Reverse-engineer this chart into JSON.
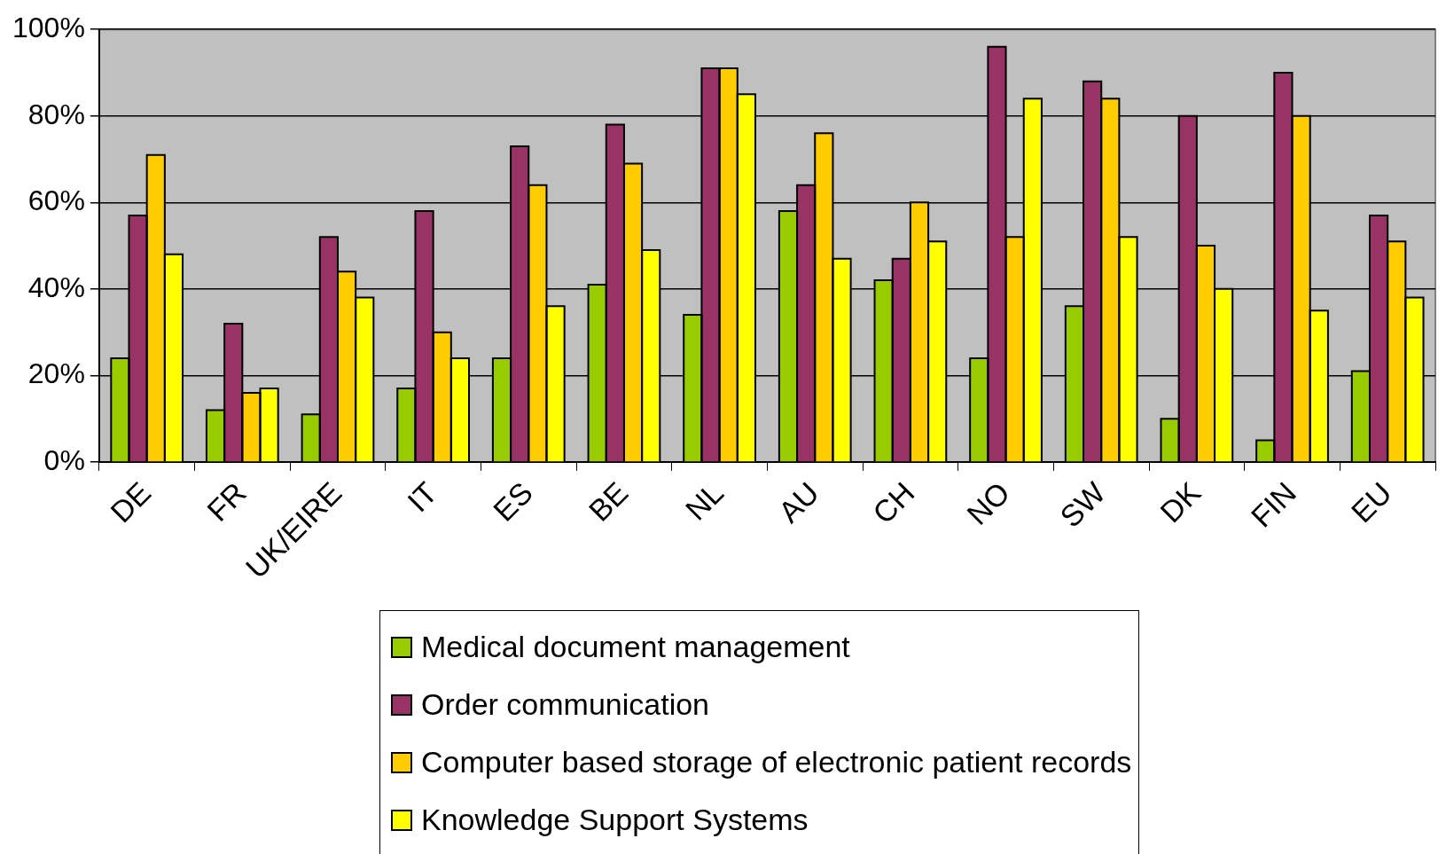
{
  "chart_data": {
    "type": "bar",
    "categories": [
      "DE",
      "FR",
      "UK/EIRE",
      "IT",
      "ES",
      "BE",
      "NL",
      "AU",
      "CH",
      "NO",
      "SW",
      "DK",
      "FIN",
      "EU"
    ],
    "series": [
      {
        "name": "Medical document management",
        "color": "#99cc00",
        "values": [
          24,
          12,
          11,
          17,
          24,
          41,
          34,
          58,
          42,
          24,
          36,
          10,
          5,
          21
        ]
      },
      {
        "name": "Order communication",
        "color": "#993366",
        "values": [
          57,
          32,
          52,
          58,
          73,
          78,
          91,
          64,
          47,
          96,
          88,
          80,
          90,
          57
        ]
      },
      {
        "name": "Computer based storage of electronic patient records",
        "color": "#ffcc00",
        "values": [
          71,
          16,
          44,
          30,
          64,
          69,
          91,
          76,
          60,
          52,
          84,
          50,
          80,
          51
        ]
      },
      {
        "name": "Knowledge Support Systems",
        "color": "#ffff00",
        "values": [
          48,
          17,
          38,
          24,
          36,
          49,
          85,
          47,
          51,
          84,
          52,
          40,
          35,
          38
        ]
      }
    ],
    "ylim": [
      0,
      100
    ],
    "yticks": [
      {
        "value": 0,
        "label": "0%"
      },
      {
        "value": 20,
        "label": "20%"
      },
      {
        "value": 40,
        "label": "40%"
      },
      {
        "value": 60,
        "label": "60%"
      },
      {
        "value": 80,
        "label": "80%"
      },
      {
        "value": 100,
        "label": "100%"
      }
    ],
    "grid": "y",
    "legend": "bottom"
  }
}
